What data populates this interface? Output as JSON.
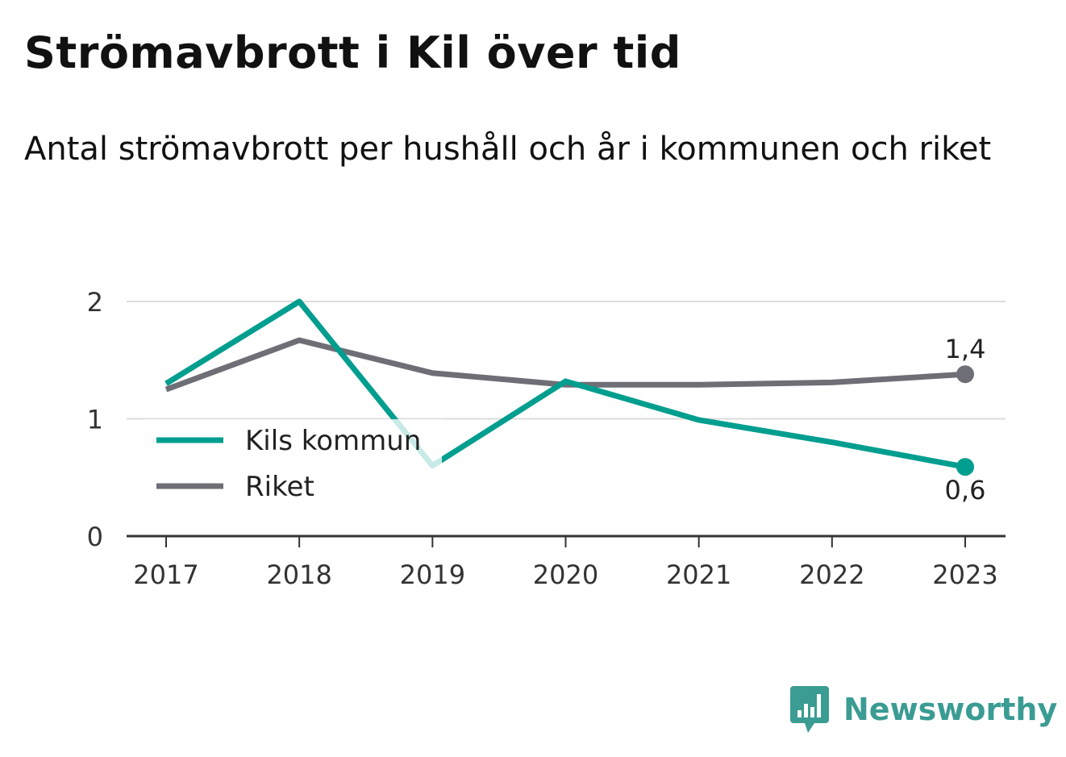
{
  "title": "Strömavbrott i Kil över tid",
  "subtitle": "Antal strömavbrott per hushåll och år i kommunen och riket",
  "brand": {
    "name": "Newsworthy",
    "icon": "newsworthy-logo-icon",
    "color": "#3a9c93"
  },
  "chart_data": {
    "type": "line",
    "x": [
      "2017",
      "2018",
      "2019",
      "2020",
      "2021",
      "2022",
      "2023"
    ],
    "y_ticks": [
      "0",
      "1",
      "2"
    ],
    "ylim": [
      0,
      2
    ],
    "grid": true,
    "legend_position": "bottom-left",
    "series": [
      {
        "name": "Kils kommun",
        "color": "#009e8f",
        "values": [
          1.3,
          2.0,
          0.6,
          1.32,
          0.99,
          0.8,
          0.59
        ],
        "end_label": "0,6"
      },
      {
        "name": "Riket",
        "color": "#6e6e76",
        "values": [
          1.25,
          1.67,
          1.39,
          1.29,
          1.29,
          1.31,
          1.38
        ],
        "end_label": "1,4"
      }
    ]
  }
}
